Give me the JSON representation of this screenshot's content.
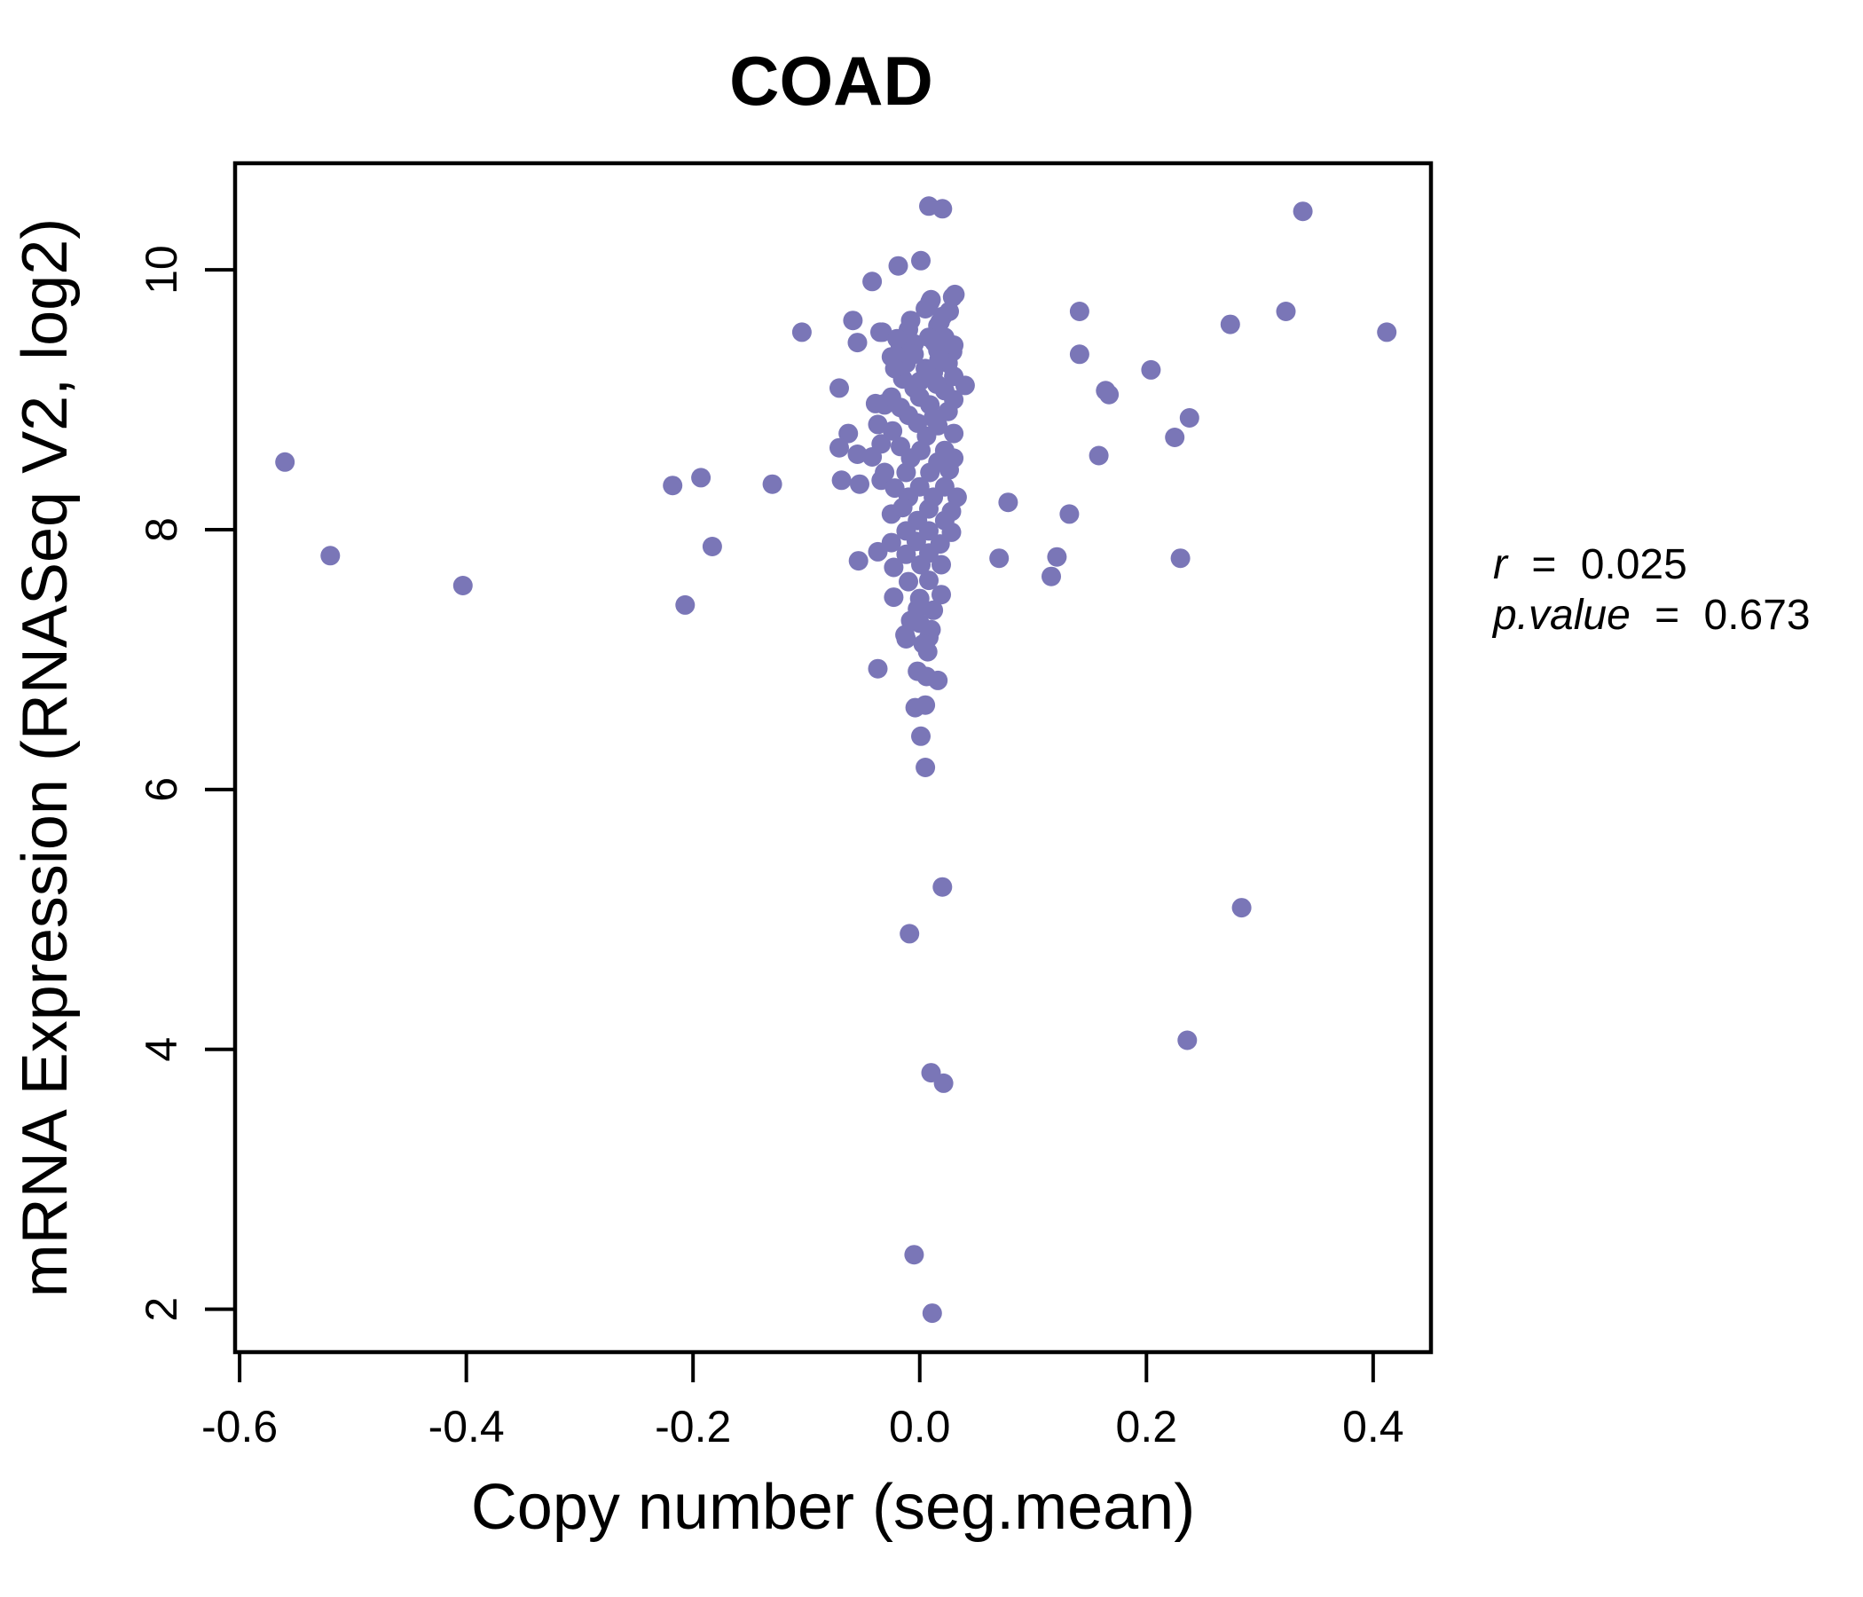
{
  "chart_data": {
    "type": "scatter",
    "title": "COAD",
    "title_color": "#8481c0",
    "xlabel": "Copy number (seg.mean)",
    "ylabel": "mRNA Expression (RNASeq V2, log2)",
    "x_ticks": [
      -0.6,
      -0.4,
      -0.2,
      0.0,
      0.2,
      0.4
    ],
    "x_tick_labels": [
      "-0.6",
      "-0.4",
      "-0.2",
      "0.0",
      "0.2",
      "0.4"
    ],
    "y_ticks": [
      2,
      4,
      6,
      8,
      10
    ],
    "y_tick_labels": [
      "2",
      "4",
      "6",
      "8",
      "10"
    ],
    "xlim": [
      -0.604,
      0.451
    ],
    "ylim": [
      1.67,
      10.82
    ],
    "grid": false,
    "legend_position": "none",
    "point_color": "#7a76b7",
    "point_radius": 11,
    "annotation": {
      "lines": [
        {
          "lhs": "r",
          "eq": "=",
          "rhs": "0.025"
        },
        {
          "lhs": "p.value",
          "eq": "=",
          "rhs": "0.673"
        }
      ]
    },
    "points": [
      [
        -0.56,
        8.52
      ],
      [
        -0.52,
        7.8
      ],
      [
        -0.403,
        7.57
      ],
      [
        -0.218,
        8.34
      ],
      [
        -0.193,
        8.4
      ],
      [
        -0.183,
        7.87
      ],
      [
        -0.207,
        7.42
      ],
      [
        -0.13,
        8.35
      ],
      [
        -0.104,
        9.52
      ],
      [
        -0.071,
        9.09
      ],
      [
        -0.063,
        8.74
      ],
      [
        -0.071,
        8.63
      ],
      [
        -0.055,
        8.58
      ],
      [
        -0.042,
        8.56
      ],
      [
        -0.069,
        8.38
      ],
      [
        -0.053,
        8.35
      ],
      [
        -0.059,
        9.61
      ],
      [
        -0.055,
        9.44
      ],
      [
        -0.042,
        9.91
      ],
      [
        -0.035,
        9.52
      ],
      [
        -0.039,
        8.97
      ],
      [
        -0.031,
        8.97
      ],
      [
        -0.037,
        8.81
      ],
      [
        -0.034,
        8.38
      ],
      [
        -0.054,
        7.76
      ],
      [
        -0.037,
        7.83
      ],
      [
        0.008,
        10.49
      ],
      [
        0.02,
        10.47
      ],
      [
        0.001,
        10.07
      ],
      [
        -0.019,
        10.03
      ],
      [
        0.031,
        9.81
      ],
      [
        0.01,
        9.77
      ],
      [
        0.026,
        9.68
      ],
      [
        0.141,
        9.68
      ],
      [
        0.141,
        9.35
      ],
      [
        0.164,
        9.07
      ],
      [
        0.158,
        8.57
      ],
      [
        0.078,
        8.21
      ],
      [
        0.132,
        8.12
      ],
      [
        0.07,
        7.78
      ],
      [
        0.121,
        7.79
      ],
      [
        0.116,
        7.64
      ],
      [
        0.04,
        9.11
      ],
      [
        0.338,
        10.45
      ],
      [
        0.323,
        9.68
      ],
      [
        0.274,
        9.58
      ],
      [
        0.412,
        9.52
      ],
      [
        0.204,
        9.23
      ],
      [
        0.167,
        9.04
      ],
      [
        0.238,
        8.86
      ],
      [
        0.225,
        8.71
      ],
      [
        0.23,
        7.78
      ],
      [
        0.02,
        5.25
      ],
      [
        -0.009,
        4.89
      ],
      [
        0.01,
        3.82
      ],
      [
        0.021,
        3.74
      ],
      [
        -0.005,
        2.42
      ],
      [
        0.011,
        1.97
      ],
      [
        0.284,
        5.09
      ],
      [
        0.236,
        4.07
      ],
      [
        -0.013,
        7.19
      ],
      [
        0.008,
        7.17
      ],
      [
        -0.002,
        6.91
      ],
      [
        0.006,
        6.87
      ],
      [
        0.016,
        6.84
      ],
      [
        -0.037,
        6.93
      ],
      [
        -0.004,
        6.63
      ],
      [
        0.005,
        6.65
      ],
      [
        0.001,
        6.41
      ],
      [
        0.005,
        6.17
      ],
      [
        0,
        7.28
      ],
      [
        0.01,
        7.23
      ],
      [
        -0.012,
        7.16
      ],
      [
        0.007,
        7.06
      ],
      [
        0.009,
        9.75
      ],
      [
        0.029,
        9.79
      ],
      [
        0.02,
        9.64
      ],
      [
        -0.01,
        9.54
      ],
      [
        -0.033,
        9.52
      ],
      [
        -0.017,
        9.41
      ],
      [
        -0.005,
        9.43
      ],
      [
        0.022,
        9.48
      ],
      [
        0.029,
        9.37
      ],
      [
        -0.025,
        9.33
      ],
      [
        -0.012,
        9.28
      ],
      [
        0.025,
        9.28
      ],
      [
        0.012,
        9.21
      ],
      [
        -0.015,
        9.16
      ],
      [
        0,
        9.14
      ],
      [
        0.022,
        9.07
      ],
      [
        -0.031,
        8.96
      ],
      [
        -0.017,
        8.94
      ],
      [
        0.009,
        8.96
      ],
      [
        0.025,
        8.91
      ],
      [
        -0.002,
        8.82
      ],
      [
        0.016,
        8.8
      ],
      [
        -0.034,
        8.66
      ],
      [
        -0.017,
        8.64
      ],
      [
        0.001,
        8.61
      ],
      [
        0.022,
        8.61
      ],
      [
        -0.031,
        8.44
      ],
      [
        -0.012,
        8.44
      ],
      [
        0.009,
        8.44
      ],
      [
        0.026,
        8.46
      ],
      [
        -0.01,
        8.25
      ],
      [
        0.012,
        8.25
      ],
      [
        0.033,
        8.25
      ],
      [
        -0.025,
        8.12
      ],
      [
        -0.002,
        8.07
      ],
      [
        0.022,
        8.07
      ],
      [
        -0.025,
        7.9
      ],
      [
        -0.003,
        7.91
      ],
      [
        0.018,
        7.89
      ],
      [
        -0.023,
        7.71
      ],
      [
        0.001,
        7.73
      ],
      [
        0.019,
        7.73
      ],
      [
        -0.023,
        7.48
      ],
      [
        0.019,
        7.5
      ],
      [
        -0.002,
        7.39
      ],
      [
        -0.021,
        9.34
      ],
      [
        -0.008,
        9.61
      ],
      [
        0.016,
        9.57
      ],
      [
        0.008,
        9.48
      ],
      [
        0.016,
        9.38
      ],
      [
        0.005,
        9.7
      ],
      [
        0.018,
        9.6
      ],
      [
        -0.02,
        9.47
      ],
      [
        0.013,
        9.44
      ],
      [
        0.03,
        9.42
      ],
      [
        -0.005,
        9.35
      ],
      [
        0.017,
        9.31
      ],
      [
        -0.022,
        9.24
      ],
      [
        0.005,
        9.24
      ],
      [
        0.03,
        9.18
      ],
      [
        -0.005,
        9.09
      ],
      [
        0.015,
        9.12
      ],
      [
        -0.025,
        9.02
      ],
      [
        0,
        9.02
      ],
      [
        0.03,
        9
      ],
      [
        -0.01,
        8.88
      ],
      [
        0.012,
        8.86
      ],
      [
        0.03,
        8.74
      ],
      [
        -0.024,
        8.76
      ],
      [
        0.006,
        8.72
      ],
      [
        -0.008,
        8.55
      ],
      [
        0.016,
        8.52
      ],
      [
        0.03,
        8.55
      ],
      [
        -0.022,
        8.32
      ],
      [
        0,
        8.33
      ],
      [
        0.022,
        8.33
      ],
      [
        -0.015,
        8.17
      ],
      [
        0.008,
        8.16
      ],
      [
        0.028,
        8.14
      ],
      [
        -0.012,
        7.99
      ],
      [
        0.008,
        7.99
      ],
      [
        0.028,
        7.98
      ],
      [
        -0.012,
        7.81
      ],
      [
        0.008,
        7.82
      ],
      [
        -0.01,
        7.6
      ],
      [
        0.008,
        7.61
      ],
      [
        0,
        7.47
      ],
      [
        0.012,
        7.38
      ],
      [
        -0.008,
        7.3
      ],
      [
        0.003,
        7.12
      ]
    ]
  }
}
